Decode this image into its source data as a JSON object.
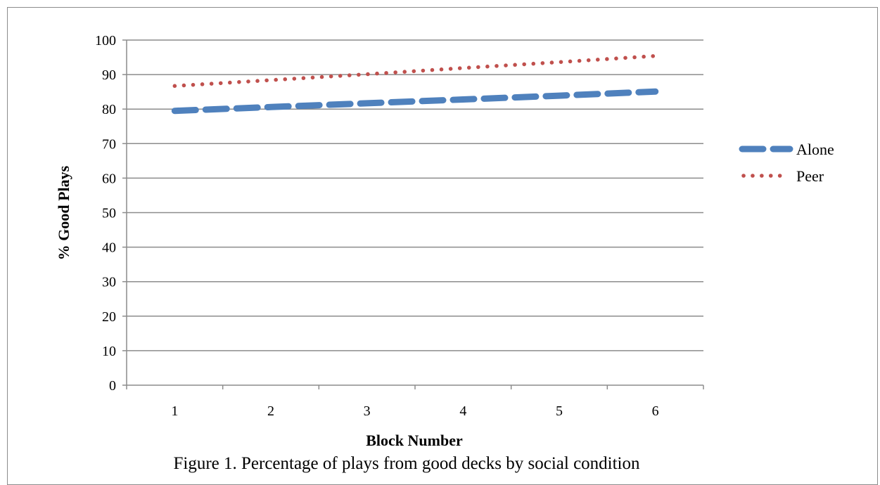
{
  "chart_data": {
    "type": "line",
    "title": "",
    "caption": "Figure 1. Percentage of plays from good decks by social condition",
    "xlabel": "Block Number",
    "ylabel": "% Good Plays",
    "categories": [
      "1",
      "2",
      "3",
      "4",
      "5",
      "6"
    ],
    "ylim": [
      0,
      100
    ],
    "yticks": [
      "0",
      "10",
      "20",
      "30",
      "40",
      "50",
      "60",
      "70",
      "80",
      "90",
      "100"
    ],
    "grid": "horizontal",
    "legend_position": "right",
    "series": [
      {
        "name": "Alone",
        "values": [
          79.5,
          80.6,
          81.7,
          82.8,
          83.9,
          85.1
        ],
        "color": "#4f81bd",
        "style": "dashed"
      },
      {
        "name": "Peer",
        "values": [
          86.7,
          88.4,
          90.1,
          91.9,
          93.6,
          95.4
        ],
        "color": "#c0504d",
        "style": "dotted"
      }
    ]
  }
}
